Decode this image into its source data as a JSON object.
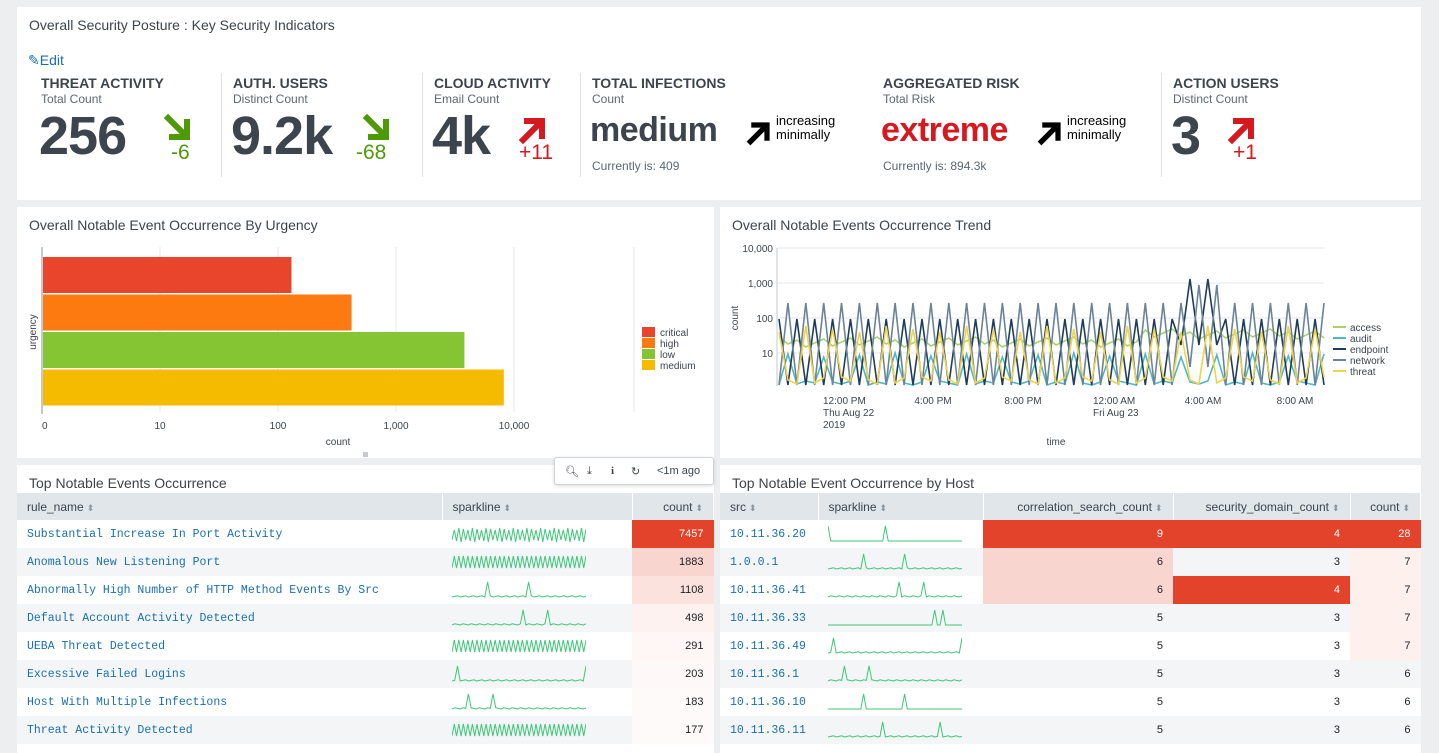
{
  "kpi": {
    "title": "Overall Security Posture : Key Security Indicators",
    "edit_label": "Edit",
    "items": [
      {
        "title": "THREAT ACTIVITY",
        "subtitle": "Total Count",
        "value": "256",
        "delta": "-6",
        "direction": "down",
        "color": "#4e9a06"
      },
      {
        "title": "AUTH. USERS",
        "subtitle": "Distinct Count",
        "value": "9.2k",
        "delta": "-68",
        "direction": "down",
        "color": "#4e9a06"
      },
      {
        "title": "CLOUD ACTIVITY",
        "subtitle": "Email Count",
        "value": "4k",
        "delta": "+11",
        "direction": "up",
        "color": "#d6181f"
      },
      {
        "title": "TOTAL INFECTIONS",
        "subtitle": "Count",
        "value": "medium",
        "trend": "increasing minimally",
        "trend_line1": "increasing",
        "trend_line2": "minimally",
        "current": "Currently is: 409"
      },
      {
        "title": "AGGREGATED RISK",
        "subtitle": "Total Risk",
        "value": "extreme",
        "trend": "increasing minimally",
        "trend_line1": "increasing",
        "trend_line2": "minimally",
        "current": "Currently is: 894.3k",
        "color": "#d6181f"
      },
      {
        "title": "ACTION USERS",
        "subtitle": "Distinct Count",
        "value": "3",
        "delta": "+1",
        "direction": "up",
        "color": "#d6181f"
      }
    ]
  },
  "urgency_chart": {
    "title": "Overall Notable Event Occurrence By Urgency",
    "chart_data": {
      "type": "bar",
      "orientation": "horizontal",
      "categories": [
        "critical",
        "high",
        "low",
        "medium"
      ],
      "values": [
        130,
        420,
        3800,
        8200
      ],
      "colors": [
        "#e8452c",
        "#fc7a0f",
        "#85c533",
        "#f4bb00"
      ],
      "xlabel": "count",
      "ylabel": "urgency",
      "xscale": "log",
      "xlim": [
        1,
        100000
      ],
      "xticks": [
        "0",
        "10",
        "100",
        "1,000",
        "10,000"
      ],
      "legend": [
        "critical",
        "high",
        "low",
        "medium"
      ],
      "legend_position": "right"
    }
  },
  "trend_chart": {
    "title": "Overall Notable Events Occurrence Trend",
    "chart_data": {
      "type": "line",
      "yscale": "log",
      "ylabel": "count",
      "xlabel": "time",
      "yticks": [
        "10,000",
        "1,000",
        "100",
        "10"
      ],
      "xticks": [
        {
          "l1": "12:00 PM",
          "l2": "Thu Aug 22",
          "l3": "2019"
        },
        {
          "l1": "4:00 PM",
          "l2": "",
          "l3": ""
        },
        {
          "l1": "8:00 PM",
          "l2": "",
          "l3": ""
        },
        {
          "l1": "12:00 AM",
          "l2": "Fri Aug 23",
          "l3": ""
        },
        {
          "l1": "4:00 AM",
          "l2": "",
          "l3": ""
        },
        {
          "l1": "8:00 AM",
          "l2": "",
          "l3": ""
        }
      ],
      "series": [
        {
          "name": "access",
          "color": "#a8d36b"
        },
        {
          "name": "audit",
          "color": "#4fb8c5"
        },
        {
          "name": "endpoint",
          "color": "#1e3d5c"
        },
        {
          "name": "network",
          "color": "#6b8499"
        },
        {
          "name": "threat",
          "color": "#f0d34b"
        }
      ]
    }
  },
  "table1": {
    "title": "Top Notable Events Occurrence",
    "toolbar_time": "<1m ago",
    "columns": [
      "rule_name",
      "sparkline",
      "count"
    ],
    "rows": [
      {
        "rule_name": "Substantial Increase In Port Activity",
        "count": "7457",
        "bg": "#e2432a",
        "fg": "#ffffff"
      },
      {
        "rule_name": "Anomalous New Listening Port",
        "count": "1883",
        "bg": "#f9d5cf",
        "fg": "#1b1f23"
      },
      {
        "rule_name": "Abnormally High Number of HTTP Method Events By Src",
        "count": "1108",
        "bg": "#fbe2dd",
        "fg": "#1b1f23"
      },
      {
        "rule_name": "Default Account Activity Detected",
        "count": "498",
        "bg": "#fdf2f0",
        "fg": "#1b1f23"
      },
      {
        "rule_name": "UEBA Threat Detected",
        "count": "291",
        "bg": "#fef7f6",
        "fg": "#1b1f23"
      },
      {
        "rule_name": "Excessive Failed Logins",
        "count": "203",
        "bg": "#fef9f8",
        "fg": "#1b1f23"
      },
      {
        "rule_name": "Host With Multiple Infections",
        "count": "183",
        "bg": "#fefaf9",
        "fg": "#1b1f23"
      },
      {
        "rule_name": "Threat Activity Detected",
        "count": "177",
        "bg": "#fefaf9",
        "fg": "#1b1f23"
      }
    ]
  },
  "table2": {
    "title": "Top Notable Event Occurrence by Host",
    "columns": [
      "src",
      "sparkline",
      "correlation_search_count",
      "security_domain_count",
      "count"
    ],
    "rows": [
      {
        "src": "10.11.36.20",
        "csc": "9",
        "sdc": "4",
        "count": "28",
        "csc_bg": "#e2432a",
        "sdc_bg": "#e2432a",
        "count_bg": "#e2432a",
        "hot": true
      },
      {
        "src": "1.0.0.1",
        "csc": "6",
        "sdc": "3",
        "count": "7",
        "csc_bg": "#f9d5cf",
        "sdc_bg": "",
        "count_bg": "#fdf0ed"
      },
      {
        "src": "10.11.36.41",
        "csc": "6",
        "sdc": "4",
        "count": "7",
        "csc_bg": "#f9d5cf",
        "sdc_bg": "#e2432a",
        "count_bg": "#fdf0ed",
        "sdc_hot": true
      },
      {
        "src": "10.11.36.33",
        "csc": "5",
        "sdc": "3",
        "count": "7",
        "csc_bg": "",
        "sdc_bg": "",
        "count_bg": "#fdf0ed"
      },
      {
        "src": "10.11.36.49",
        "csc": "5",
        "sdc": "3",
        "count": "7",
        "csc_bg": "",
        "sdc_bg": "",
        "count_bg": "#fdf0ed"
      },
      {
        "src": "10.11.36.1",
        "csc": "5",
        "sdc": "3",
        "count": "6",
        "csc_bg": "",
        "sdc_bg": "",
        "count_bg": ""
      },
      {
        "src": "10.11.36.10",
        "csc": "5",
        "sdc": "3",
        "count": "6",
        "csc_bg": "",
        "sdc_bg": "",
        "count_bg": ""
      },
      {
        "src": "10.11.36.11",
        "csc": "5",
        "sdc": "3",
        "count": "6",
        "csc_bg": "",
        "sdc_bg": "",
        "count_bg": ""
      }
    ]
  }
}
